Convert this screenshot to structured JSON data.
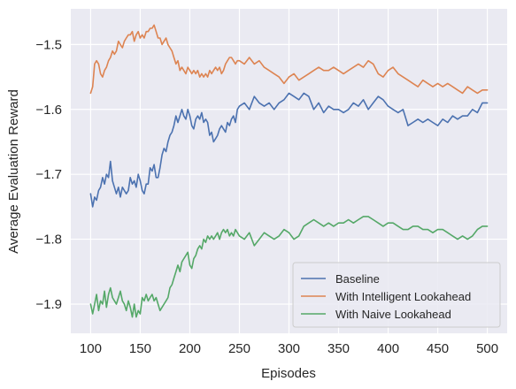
{
  "chart_data": {
    "type": "line",
    "title": "",
    "xlabel": "Episodes",
    "ylabel": "Average Evaluation Reward",
    "xlim": [
      80,
      520
    ],
    "ylim": [
      -1.945,
      -1.445
    ],
    "xticks": [
      100,
      150,
      200,
      250,
      300,
      350,
      400,
      450,
      500
    ],
    "xtick_labels": [
      "100",
      "150",
      "200",
      "250",
      "300",
      "350",
      "400",
      "450",
      "500"
    ],
    "yticks": [
      -1.9,
      -1.8,
      -1.7,
      -1.6,
      -1.5
    ],
    "ytick_labels": [
      "−1.9",
      "−1.8",
      "−1.7",
      "−1.6",
      "−1.5"
    ],
    "grid": true,
    "background": "#eaeaf2",
    "legend_position": "bottom-right",
    "series": [
      {
        "name": "Baseline",
        "color": "#4c72b0",
        "x": [
          100,
          102,
          104,
          106,
          108,
          110,
          112,
          114,
          116,
          118,
          120,
          122,
          124,
          126,
          128,
          130,
          132,
          134,
          136,
          138,
          140,
          142,
          144,
          146,
          148,
          150,
          152,
          154,
          156,
          158,
          160,
          162,
          164,
          166,
          168,
          170,
          172,
          174,
          176,
          178,
          180,
          182,
          184,
          186,
          188,
          190,
          192,
          194,
          196,
          198,
          200,
          202,
          204,
          206,
          208,
          210,
          212,
          214,
          216,
          218,
          220,
          222,
          224,
          226,
          228,
          230,
          232,
          234,
          236,
          238,
          240,
          242,
          244,
          246,
          248,
          250,
          255,
          260,
          265,
          270,
          275,
          280,
          285,
          290,
          295,
          300,
          305,
          310,
          315,
          320,
          325,
          330,
          335,
          340,
          345,
          350,
          355,
          360,
          365,
          370,
          375,
          380,
          385,
          390,
          395,
          400,
          405,
          410,
          415,
          420,
          425,
          430,
          435,
          440,
          445,
          450,
          455,
          460,
          465,
          470,
          475,
          480,
          485,
          490,
          495,
          500
        ],
        "values": [
          -1.73,
          -1.75,
          -1.735,
          -1.74,
          -1.725,
          -1.72,
          -1.705,
          -1.715,
          -1.7,
          -1.705,
          -1.68,
          -1.71,
          -1.72,
          -1.73,
          -1.72,
          -1.735,
          -1.72,
          -1.725,
          -1.73,
          -1.725,
          -1.705,
          -1.715,
          -1.71,
          -1.72,
          -1.7,
          -1.71,
          -1.725,
          -1.73,
          -1.715,
          -1.715,
          -1.69,
          -1.695,
          -1.685,
          -1.705,
          -1.705,
          -1.69,
          -1.67,
          -1.66,
          -1.665,
          -1.65,
          -1.64,
          -1.635,
          -1.625,
          -1.61,
          -1.62,
          -1.61,
          -1.6,
          -1.61,
          -1.615,
          -1.6,
          -1.61,
          -1.625,
          -1.63,
          -1.615,
          -1.61,
          -1.615,
          -1.605,
          -1.62,
          -1.615,
          -1.62,
          -1.64,
          -1.635,
          -1.65,
          -1.645,
          -1.64,
          -1.63,
          -1.625,
          -1.63,
          -1.635,
          -1.62,
          -1.625,
          -1.615,
          -1.61,
          -1.62,
          -1.6,
          -1.595,
          -1.59,
          -1.6,
          -1.58,
          -1.59,
          -1.595,
          -1.59,
          -1.6,
          -1.59,
          -1.585,
          -1.575,
          -1.58,
          -1.585,
          -1.575,
          -1.58,
          -1.6,
          -1.59,
          -1.605,
          -1.595,
          -1.6,
          -1.6,
          -1.605,
          -1.6,
          -1.59,
          -1.595,
          -1.585,
          -1.6,
          -1.59,
          -1.58,
          -1.585,
          -1.595,
          -1.6,
          -1.605,
          -1.6,
          -1.625,
          -1.62,
          -1.615,
          -1.62,
          -1.615,
          -1.62,
          -1.625,
          -1.615,
          -1.62,
          -1.61,
          -1.615,
          -1.61,
          -1.61,
          -1.6,
          -1.605,
          -1.59,
          -1.59
        ]
      },
      {
        "name": "With Intelligent Lookahead",
        "color": "#dd8452",
        "x": [
          100,
          102,
          104,
          106,
          108,
          110,
          112,
          114,
          116,
          118,
          120,
          122,
          124,
          126,
          128,
          130,
          132,
          134,
          136,
          138,
          140,
          142,
          144,
          146,
          148,
          150,
          152,
          154,
          156,
          158,
          160,
          162,
          164,
          166,
          168,
          170,
          172,
          174,
          176,
          178,
          180,
          182,
          184,
          186,
          188,
          190,
          192,
          194,
          196,
          198,
          200,
          202,
          204,
          206,
          208,
          210,
          212,
          214,
          216,
          218,
          220,
          222,
          224,
          226,
          228,
          230,
          232,
          234,
          236,
          238,
          240,
          242,
          244,
          246,
          248,
          250,
          255,
          260,
          265,
          270,
          275,
          280,
          285,
          290,
          295,
          300,
          305,
          310,
          315,
          320,
          325,
          330,
          335,
          340,
          345,
          350,
          355,
          360,
          365,
          370,
          375,
          380,
          385,
          390,
          395,
          400,
          405,
          410,
          415,
          420,
          425,
          430,
          435,
          440,
          445,
          450,
          455,
          460,
          465,
          470,
          475,
          480,
          485,
          490,
          495,
          500
        ],
        "values": [
          -1.575,
          -1.565,
          -1.53,
          -1.525,
          -1.53,
          -1.545,
          -1.55,
          -1.54,
          -1.535,
          -1.525,
          -1.52,
          -1.51,
          -1.515,
          -1.51,
          -1.495,
          -1.5,
          -1.505,
          -1.495,
          -1.49,
          -1.485,
          -1.485,
          -1.48,
          -1.495,
          -1.485,
          -1.48,
          -1.49,
          -1.485,
          -1.49,
          -1.48,
          -1.48,
          -1.475,
          -1.475,
          -1.47,
          -1.48,
          -1.49,
          -1.49,
          -1.5,
          -1.495,
          -1.49,
          -1.5,
          -1.505,
          -1.51,
          -1.52,
          -1.53,
          -1.525,
          -1.54,
          -1.535,
          -1.54,
          -1.545,
          -1.535,
          -1.54,
          -1.545,
          -1.54,
          -1.545,
          -1.54,
          -1.55,
          -1.545,
          -1.55,
          -1.545,
          -1.55,
          -1.54,
          -1.545,
          -1.54,
          -1.535,
          -1.54,
          -1.535,
          -1.545,
          -1.54,
          -1.53,
          -1.525,
          -1.52,
          -1.52,
          -1.525,
          -1.53,
          -1.525,
          -1.525,
          -1.53,
          -1.52,
          -1.53,
          -1.525,
          -1.535,
          -1.54,
          -1.545,
          -1.55,
          -1.56,
          -1.55,
          -1.545,
          -1.555,
          -1.55,
          -1.545,
          -1.54,
          -1.535,
          -1.54,
          -1.54,
          -1.535,
          -1.54,
          -1.545,
          -1.54,
          -1.535,
          -1.53,
          -1.535,
          -1.525,
          -1.53,
          -1.545,
          -1.55,
          -1.54,
          -1.535,
          -1.545,
          -1.55,
          -1.555,
          -1.56,
          -1.565,
          -1.555,
          -1.56,
          -1.565,
          -1.56,
          -1.565,
          -1.56,
          -1.565,
          -1.57,
          -1.575,
          -1.565,
          -1.57,
          -1.575,
          -1.57,
          -1.57
        ]
      },
      {
        "name": "With Naive Lookahead",
        "color": "#55a868",
        "x": [
          100,
          102,
          104,
          106,
          108,
          110,
          112,
          114,
          116,
          118,
          120,
          122,
          124,
          126,
          128,
          130,
          132,
          134,
          136,
          138,
          140,
          142,
          144,
          146,
          148,
          150,
          152,
          154,
          156,
          158,
          160,
          162,
          164,
          166,
          168,
          170,
          172,
          174,
          176,
          178,
          180,
          182,
          184,
          186,
          188,
          190,
          192,
          194,
          196,
          198,
          200,
          202,
          204,
          206,
          208,
          210,
          212,
          214,
          216,
          218,
          220,
          222,
          224,
          226,
          228,
          230,
          232,
          234,
          236,
          238,
          240,
          242,
          244,
          246,
          248,
          250,
          255,
          260,
          265,
          270,
          275,
          280,
          285,
          290,
          295,
          300,
          305,
          310,
          315,
          320,
          325,
          330,
          335,
          340,
          345,
          350,
          355,
          360,
          365,
          370,
          375,
          380,
          385,
          390,
          395,
          400,
          405,
          410,
          415,
          420,
          425,
          430,
          435,
          440,
          445,
          450,
          455,
          460,
          465,
          470,
          475,
          480,
          485,
          490,
          495,
          500
        ],
        "values": [
          -1.9,
          -1.915,
          -1.9,
          -1.885,
          -1.91,
          -1.895,
          -1.9,
          -1.88,
          -1.905,
          -1.885,
          -1.875,
          -1.89,
          -1.895,
          -1.9,
          -1.89,
          -1.88,
          -1.895,
          -1.9,
          -1.91,
          -1.895,
          -1.905,
          -1.92,
          -1.9,
          -1.92,
          -1.91,
          -1.915,
          -1.89,
          -1.895,
          -1.885,
          -1.895,
          -1.89,
          -1.885,
          -1.895,
          -1.89,
          -1.9,
          -1.91,
          -1.905,
          -1.9,
          -1.895,
          -1.89,
          -1.875,
          -1.87,
          -1.86,
          -1.85,
          -1.84,
          -1.85,
          -1.835,
          -1.83,
          -1.825,
          -1.82,
          -1.84,
          -1.845,
          -1.83,
          -1.825,
          -1.815,
          -1.81,
          -1.815,
          -1.8,
          -1.805,
          -1.795,
          -1.8,
          -1.795,
          -1.8,
          -1.795,
          -1.79,
          -1.8,
          -1.79,
          -1.785,
          -1.79,
          -1.785,
          -1.795,
          -1.79,
          -1.795,
          -1.785,
          -1.79,
          -1.795,
          -1.8,
          -1.79,
          -1.81,
          -1.8,
          -1.79,
          -1.795,
          -1.8,
          -1.795,
          -1.785,
          -1.79,
          -1.8,
          -1.795,
          -1.78,
          -1.775,
          -1.77,
          -1.775,
          -1.78,
          -1.775,
          -1.78,
          -1.775,
          -1.775,
          -1.77,
          -1.775,
          -1.77,
          -1.765,
          -1.765,
          -1.77,
          -1.775,
          -1.78,
          -1.775,
          -1.775,
          -1.78,
          -1.785,
          -1.785,
          -1.78,
          -1.78,
          -1.785,
          -1.785,
          -1.79,
          -1.785,
          -1.785,
          -1.79,
          -1.795,
          -1.8,
          -1.795,
          -1.8,
          -1.795,
          -1.785,
          -1.78,
          -1.78
        ]
      }
    ]
  }
}
